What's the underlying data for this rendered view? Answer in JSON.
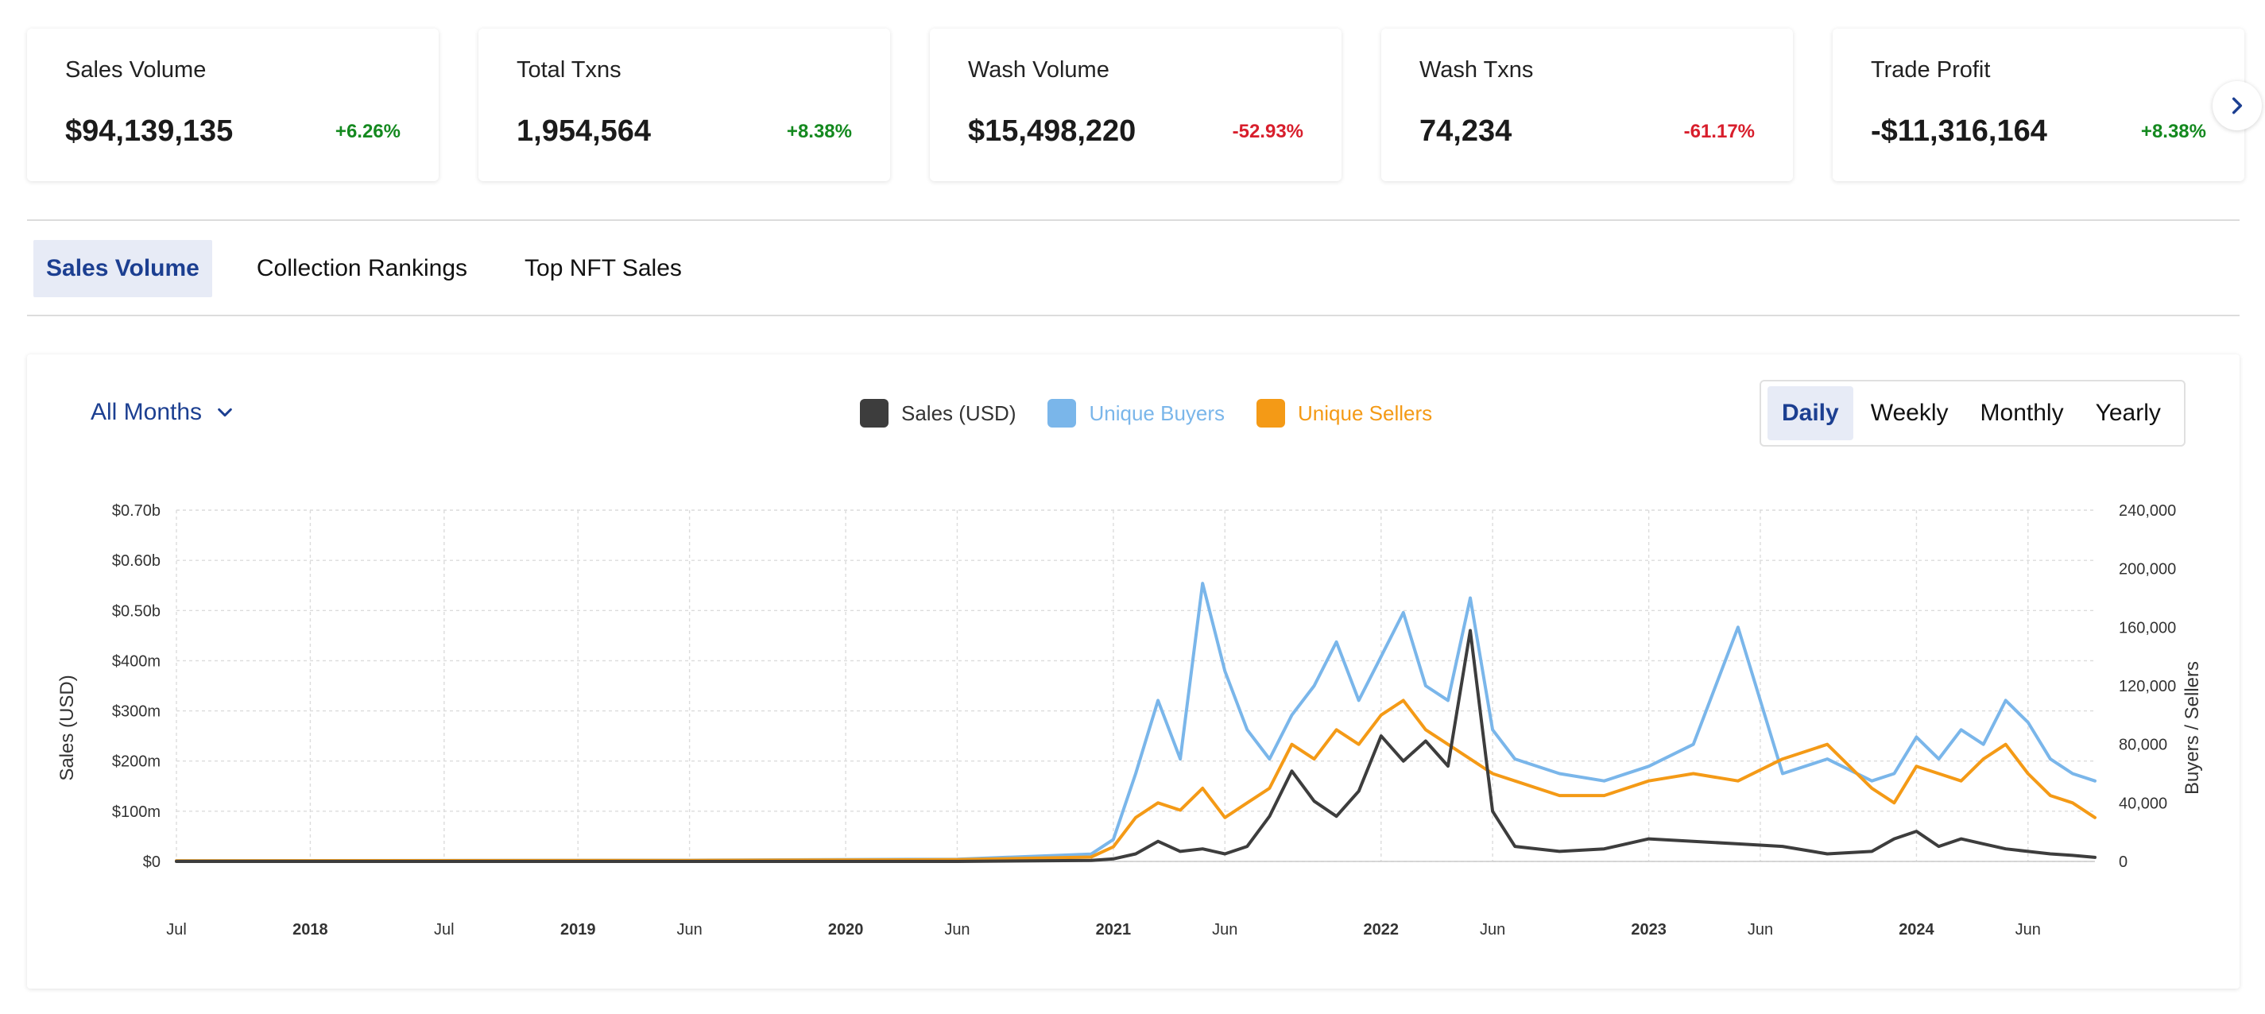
{
  "stats": [
    {
      "label": "Sales Volume",
      "value": "$94,139,135",
      "change": "+6.26%",
      "direction": "up"
    },
    {
      "label": "Total Txns",
      "value": "1,954,564",
      "change": "+8.38%",
      "direction": "up"
    },
    {
      "label": "Wash Volume",
      "value": "$15,498,220",
      "change": "-52.93%",
      "direction": "down"
    },
    {
      "label": "Wash Txns",
      "value": "74,234",
      "change": "-61.17%",
      "direction": "down"
    },
    {
      "label": "Trade Profit",
      "value": "-$11,316,164",
      "change": "+8.38%",
      "direction": "up"
    }
  ],
  "next_icon": "chevron-right-icon",
  "tabs": [
    {
      "label": "Sales Volume",
      "active": true
    },
    {
      "label": "Collection Rankings",
      "active": false
    },
    {
      "label": "Top NFT Sales",
      "active": false
    }
  ],
  "period_select": {
    "label": "All Months",
    "icon": "chevron-down-icon"
  },
  "legend": [
    {
      "label": "Sales (USD)",
      "color": "#3d3d3d",
      "text_color": "#333333"
    },
    {
      "label": "Unique Buyers",
      "color": "#7ab6ea",
      "text_color": "#7ab6ea"
    },
    {
      "label": "Unique Sellers",
      "color": "#f49a16",
      "text_color": "#f49a16"
    }
  ],
  "granularity": [
    {
      "label": "Daily",
      "active": true
    },
    {
      "label": "Weekly",
      "active": false
    },
    {
      "label": "Monthly",
      "active": false
    },
    {
      "label": "Yearly",
      "active": false
    }
  ],
  "colors": {
    "accent": "#1c3f91",
    "sales": "#3d3d3d",
    "buyers": "#7ab6ea",
    "sellers": "#f49a16",
    "up": "#14891f",
    "down": "#d81e2c"
  },
  "chart_data": {
    "type": "line",
    "ylabel": "Sales (USD)",
    "y2label": "Buyers / Sellers",
    "y_ticks": [
      "$0",
      "$100m",
      "$200m",
      "$300m",
      "$400m",
      "$0.50b",
      "$0.60b",
      "$0.70b"
    ],
    "y_tick_values": [
      0,
      100,
      200,
      300,
      400,
      500,
      600,
      700
    ],
    "y2_ticks": [
      "0",
      "40,000",
      "80,000",
      "120,000",
      "160,000",
      "200,000",
      "240,000"
    ],
    "y2_tick_values": [
      0,
      40000,
      80000,
      120000,
      160000,
      200000,
      240000
    ],
    "ylim": [
      0,
      700
    ],
    "y2lim": [
      0,
      240000
    ],
    "x_ticks": [
      {
        "label": "Jul",
        "bold": false,
        "date": "2017-07"
      },
      {
        "label": "2018",
        "bold": true,
        "date": "2018-01"
      },
      {
        "label": "Jul",
        "bold": false,
        "date": "2018-07"
      },
      {
        "label": "2019",
        "bold": true,
        "date": "2019-01"
      },
      {
        "label": "Jun",
        "bold": false,
        "date": "2019-06"
      },
      {
        "label": "2020",
        "bold": true,
        "date": "2020-01"
      },
      {
        "label": "Jun",
        "bold": false,
        "date": "2020-06"
      },
      {
        "label": "2021",
        "bold": true,
        "date": "2021-01"
      },
      {
        "label": "Jun",
        "bold": false,
        "date": "2021-06"
      },
      {
        "label": "2022",
        "bold": true,
        "date": "2022-01"
      },
      {
        "label": "Jun",
        "bold": false,
        "date": "2022-06"
      },
      {
        "label": "2023",
        "bold": true,
        "date": "2023-01"
      },
      {
        "label": "Jun",
        "bold": false,
        "date": "2023-06"
      },
      {
        "label": "2024",
        "bold": true,
        "date": "2024-01"
      },
      {
        "label": "Jun",
        "bold": false,
        "date": "2024-06"
      }
    ],
    "xlim": [
      "2017-07",
      "2024-09"
    ],
    "grid": true,
    "series": [
      {
        "name": "Sales (USD)",
        "axis": "left",
        "unit": "$m",
        "x": [
          "2017-07",
          "2019-06",
          "2020-06",
          "2020-12",
          "2021-01",
          "2021-02",
          "2021-03",
          "2021-04",
          "2021-05",
          "2021-06",
          "2021-07",
          "2021-08",
          "2021-09",
          "2021-10",
          "2021-11",
          "2021-12",
          "2022-01",
          "2022-02",
          "2022-03",
          "2022-04",
          "2022-05",
          "2022-06",
          "2022-07",
          "2022-09",
          "2022-11",
          "2023-01",
          "2023-03",
          "2023-05",
          "2023-07",
          "2023-09",
          "2023-11",
          "2023-12",
          "2024-01",
          "2024-02",
          "2024-03",
          "2024-04",
          "2024-05",
          "2024-06",
          "2024-07",
          "2024-08",
          "2024-09"
        ],
        "values": [
          0,
          0,
          0,
          2,
          5,
          15,
          40,
          20,
          25,
          15,
          30,
          90,
          180,
          120,
          90,
          140,
          250,
          200,
          240,
          190,
          460,
          100,
          30,
          20,
          25,
          45,
          40,
          35,
          30,
          15,
          20,
          45,
          60,
          30,
          45,
          35,
          25,
          20,
          15,
          12,
          8
        ]
      },
      {
        "name": "Unique Buyers",
        "axis": "right",
        "unit": "count",
        "x": [
          "2017-07",
          "2019-06",
          "2020-06",
          "2020-12",
          "2021-01",
          "2021-02",
          "2021-03",
          "2021-04",
          "2021-05",
          "2021-06",
          "2021-07",
          "2021-08",
          "2021-09",
          "2021-10",
          "2021-11",
          "2021-12",
          "2022-01",
          "2022-02",
          "2022-03",
          "2022-04",
          "2022-05",
          "2022-06",
          "2022-07",
          "2022-09",
          "2022-11",
          "2023-01",
          "2023-03",
          "2023-05",
          "2023-07",
          "2023-09",
          "2023-11",
          "2023-12",
          "2024-01",
          "2024-02",
          "2024-03",
          "2024-04",
          "2024-05",
          "2024-06",
          "2024-07",
          "2024-08",
          "2024-09"
        ],
        "values": [
          500,
          800,
          1500,
          5000,
          15000,
          60000,
          110000,
          70000,
          190000,
          130000,
          90000,
          70000,
          100000,
          120000,
          150000,
          110000,
          140000,
          170000,
          120000,
          110000,
          180000,
          90000,
          70000,
          60000,
          55000,
          65000,
          80000,
          160000,
          60000,
          70000,
          55000,
          60000,
          85000,
          70000,
          90000,
          80000,
          110000,
          95000,
          70000,
          60000,
          55000
        ]
      },
      {
        "name": "Unique Sellers",
        "axis": "right",
        "unit": "count",
        "x": [
          "2017-07",
          "2019-06",
          "2020-06",
          "2020-12",
          "2021-01",
          "2021-02",
          "2021-03",
          "2021-04",
          "2021-05",
          "2021-06",
          "2021-07",
          "2021-08",
          "2021-09",
          "2021-10",
          "2021-11",
          "2021-12",
          "2022-01",
          "2022-02",
          "2022-03",
          "2022-04",
          "2022-05",
          "2022-06",
          "2022-07",
          "2022-09",
          "2022-11",
          "2023-01",
          "2023-03",
          "2023-05",
          "2023-07",
          "2023-09",
          "2023-11",
          "2023-12",
          "2024-01",
          "2024-02",
          "2024-03",
          "2024-04",
          "2024-05",
          "2024-06",
          "2024-07",
          "2024-08",
          "2024-09"
        ],
        "values": [
          400,
          700,
          1200,
          3000,
          10000,
          30000,
          40000,
          35000,
          50000,
          30000,
          40000,
          50000,
          80000,
          70000,
          90000,
          80000,
          100000,
          110000,
          90000,
          80000,
          70000,
          60000,
          55000,
          45000,
          45000,
          55000,
          60000,
          55000,
          70000,
          80000,
          50000,
          40000,
          65000,
          60000,
          55000,
          70000,
          80000,
          60000,
          45000,
          40000,
          30000
        ]
      }
    ]
  }
}
